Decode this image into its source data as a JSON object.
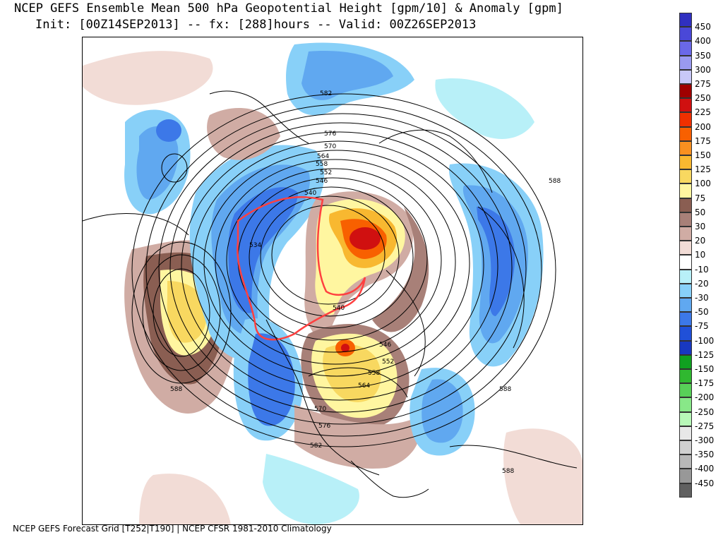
{
  "header": {
    "title_line1": "NCEP GEFS Ensemble Mean 500 hPa Geopotential Height [gpm/10] & Anomaly [gpm]",
    "title_line2": "Init: [00Z14SEP2013] -- fx: [288]hours -- Valid: 00Z26SEP2013"
  },
  "footer": {
    "text": "NCEP GEFS Forecast Grid [T252|T190] | NCEP CFSR 1981-2010 Climatology"
  },
  "colorbar": {
    "entries": [
      {
        "label": "450",
        "color": "#3030c0"
      },
      {
        "label": "400",
        "color": "#4a48d8"
      },
      {
        "label": "350",
        "color": "#6a68e8"
      },
      {
        "label": "300",
        "color": "#9a9af0"
      },
      {
        "label": "275",
        "color": "#c8c8f8"
      },
      {
        "label": "250",
        "color": "#a00000"
      },
      {
        "label": "225",
        "color": "#d01010"
      },
      {
        "label": "200",
        "color": "#f03000"
      },
      {
        "label": "175",
        "color": "#f86000"
      },
      {
        "label": "150",
        "color": "#f89020"
      },
      {
        "label": "125",
        "color": "#f8b830"
      },
      {
        "label": "100",
        "color": "#f8d860"
      },
      {
        "label": "75",
        "color": "#fff6a0"
      },
      {
        "label": "50",
        "color": "#8a5e52"
      },
      {
        "label": "30",
        "color": "#a88078"
      },
      {
        "label": "20",
        "color": "#d0aca4"
      },
      {
        "label": "10",
        "color": "#f2dcd6"
      },
      {
        "label": "-10",
        "color": "#ffffff"
      },
      {
        "label": "-20",
        "color": "#b8f0f8"
      },
      {
        "label": "-30",
        "color": "#88d0f8"
      },
      {
        "label": "-50",
        "color": "#60a8f0"
      },
      {
        "label": "-75",
        "color": "#3c78e8"
      },
      {
        "label": "-100",
        "color": "#2050d8"
      },
      {
        "label": "-125",
        "color": "#1838c0"
      },
      {
        "label": "-150",
        "color": "#10a020"
      },
      {
        "label": "-175",
        "color": "#30b830"
      },
      {
        "label": "-200",
        "color": "#58d058"
      },
      {
        "label": "-250",
        "color": "#88e888"
      },
      {
        "label": "-275",
        "color": "#b8f8b8"
      },
      {
        "label": "-300",
        "color": "#e8e8e8"
      },
      {
        "label": "-350",
        "color": "#d0d0d0"
      },
      {
        "label": "-400",
        "color": "#b8b8b8"
      },
      {
        "label": "-450",
        "color": "#989898"
      },
      {
        "label": "",
        "color": "#606060"
      }
    ]
  },
  "contour_labels": [
    {
      "text": "582"
    },
    {
      "text": "576"
    },
    {
      "text": "570"
    },
    {
      "text": "564"
    },
    {
      "text": "558"
    },
    {
      "text": "552"
    },
    {
      "text": "546"
    },
    {
      "text": "540"
    },
    {
      "text": "534"
    },
    {
      "text": "540"
    },
    {
      "text": "546"
    },
    {
      "text": "552"
    },
    {
      "text": "558"
    },
    {
      "text": "564"
    },
    {
      "text": "570"
    },
    {
      "text": "576"
    },
    {
      "text": "582"
    },
    {
      "text": "588"
    },
    {
      "text": "588"
    },
    {
      "text": "588"
    },
    {
      "text": "588"
    }
  ]
}
